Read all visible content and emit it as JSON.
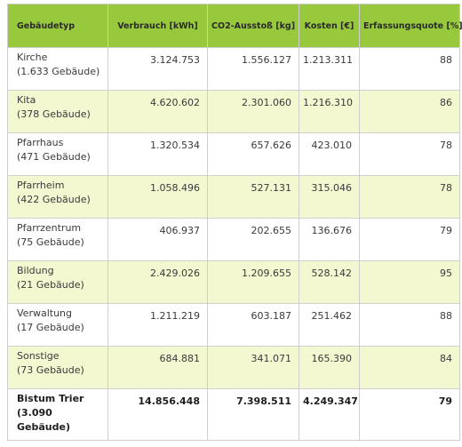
{
  "columns": [
    "Gebäudetyp",
    "Verbrauch [kWh]",
    "CO",
    "2",
    "-Ausstoß [kg]",
    "Kosten [€]",
    "Erfassungsquote [%]"
  ],
  "rows": [
    {
      "name": "Kirche",
      "count": "(1.633 Gebäude)",
      "verbrauch": "3.124.753",
      "co2": "1.556.127",
      "kosten": "1.213.311",
      "quote": "88"
    },
    {
      "name": "Kita",
      "count": "(378 Gebäude)",
      "verbrauch": "4.620.602",
      "co2": "2.301.060",
      "kosten": "1.216.310",
      "quote": "86"
    },
    {
      "name": "Pfarrhaus",
      "count": "(471 Gebäude)",
      "verbrauch": "1.320.534",
      "co2": "657.626",
      "kosten": "423.010",
      "quote": "78"
    },
    {
      "name": "Pfarrheim",
      "count": "(422 Gebäude)",
      "verbrauch": "1.058.496",
      "co2": "527.131",
      "kosten": "315.046",
      "quote": "78"
    },
    {
      "name": "Pfarrzentrum",
      "count": "(75 Gebäude)",
      "verbrauch": "406.937",
      "co2": "202.655",
      "kosten": "136.676",
      "quote": "79"
    },
    {
      "name": "Bildung",
      "count": "(21 Gebäude)",
      "verbrauch": "2.429.026",
      "co2": "1.209.655",
      "kosten": "528.142",
      "quote": "95"
    },
    {
      "name": "Verwaltung",
      "count": "(17 Gebäude)",
      "verbrauch": "1.211.219",
      "co2": "603.187",
      "kosten": "251.462",
      "quote": "88"
    },
    {
      "name": "Sonstige",
      "count": "(73 Gebäude)",
      "verbrauch": "684.881",
      "co2": "341.071",
      "kosten": "165.390",
      "quote": "84"
    }
  ],
  "total": {
    "name": "Bistum Trier",
    "count": "(3.090 Gebäude)",
    "verbrauch": "14.856.448",
    "co2": "7.398.511",
    "kosten": "4.249.347",
    "quote": "79"
  },
  "colors": {
    "header": "#98c93c",
    "alt_row": "#f3f8d0",
    "border": "#cfcfcf"
  }
}
